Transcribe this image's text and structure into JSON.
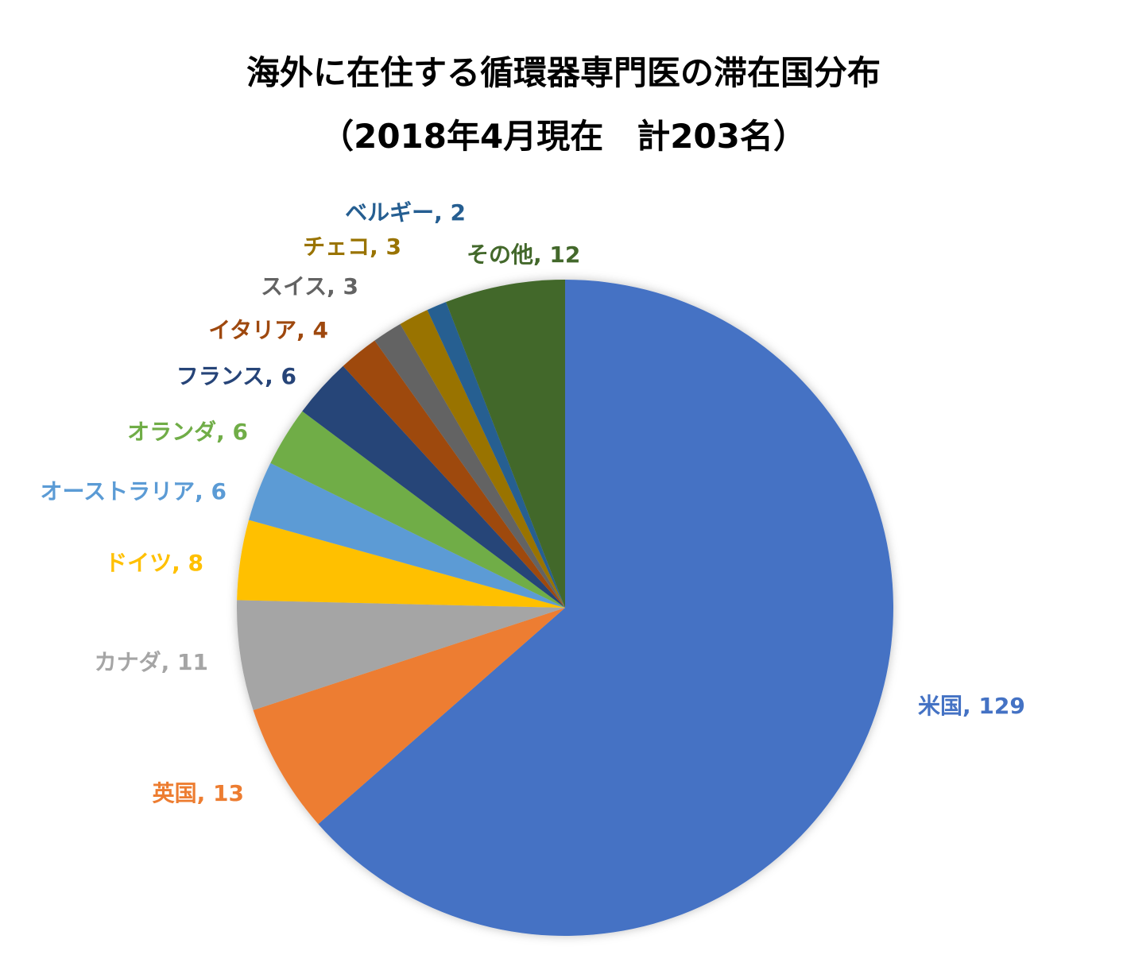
{
  "chart_data": {
    "type": "pie",
    "title": "海外に在住する循環器専門医の滞在国分布",
    "subtitle": "（2018年4月現在　計203名）",
    "start_angle_deg": 0,
    "direction": "clockwise",
    "slices": [
      {
        "label": "米国",
        "value": 129,
        "color": "#4472C4",
        "display": "米国, 129"
      },
      {
        "label": "英国",
        "value": 13,
        "color": "#ED7D31",
        "display": "英国, 13"
      },
      {
        "label": "カナダ",
        "value": 11,
        "color": "#A5A5A5",
        "display": "カナダ, 11"
      },
      {
        "label": "ドイツ",
        "value": 8,
        "color": "#FFC000",
        "display": "ドイツ, 8"
      },
      {
        "label": "オーストラリア",
        "value": 6,
        "color": "#5B9BD5",
        "display": "オーストラリア, 6"
      },
      {
        "label": "オランダ",
        "value": 6,
        "color": "#70AD47",
        "display": "オランダ, 6"
      },
      {
        "label": "フランス",
        "value": 6,
        "color": "#264478",
        "display": "フランス, 6"
      },
      {
        "label": "イタリア",
        "value": 4,
        "color": "#9E480E",
        "display": "イタリア, 4"
      },
      {
        "label": "スイス",
        "value": 3,
        "color": "#636363",
        "display": "スイス, 3"
      },
      {
        "label": "チェコ",
        "value": 3,
        "color": "#997300",
        "display": "チェコ, 3"
      },
      {
        "label": "ベルギー",
        "value": 2,
        "color": "#255E91",
        "display": "ベルギー, 2"
      },
      {
        "label": "その他",
        "value": 12,
        "color": "#43682B",
        "display": "その他, 12"
      }
    ]
  }
}
